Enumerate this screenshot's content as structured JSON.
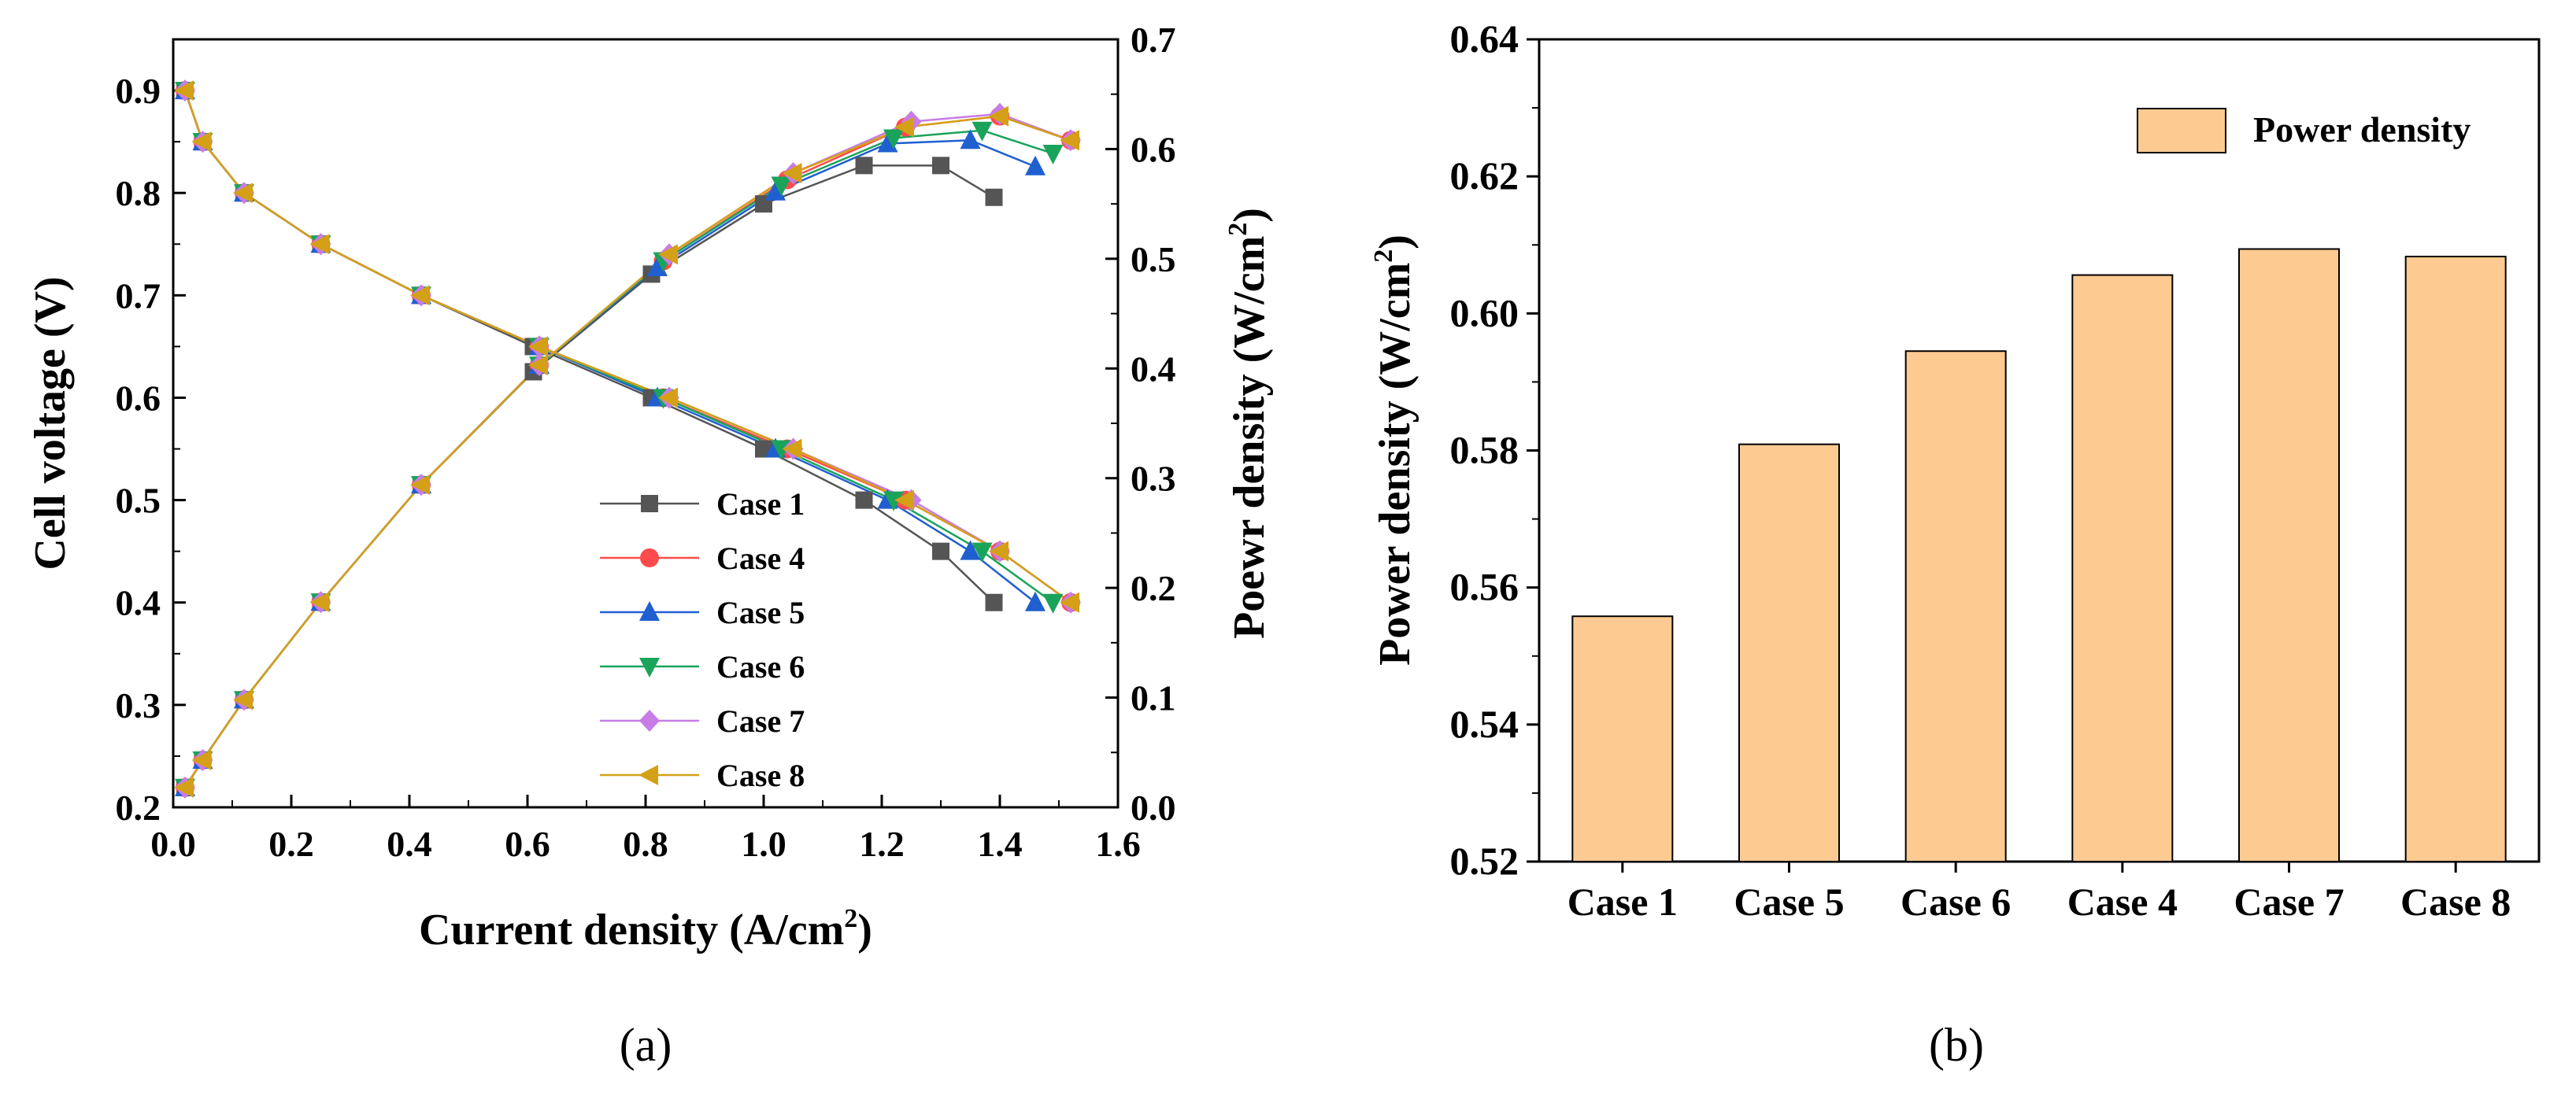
{
  "chart_data": [
    {
      "panel_label": "(a)",
      "type": "line",
      "title": "",
      "xlabel": "Current density (A/cm2)",
      "xlabel_parts": [
        "Current density (A/cm",
        "2",
        ")"
      ],
      "ylabel_left": "Cell voltage (V)",
      "ylabel_right": "Poewr density (W/cm2)",
      "ylabel_right_parts": [
        "Poewr density (W/cm",
        "2",
        ")"
      ],
      "xlim": [
        0.0,
        1.6
      ],
      "ylim_left": [
        0.2,
        0.95
      ],
      "ylim_right": [
        0.0,
        0.7
      ],
      "xticks": [
        "0.0",
        "0.2",
        "0.4",
        "0.6",
        "0.8",
        "1.0",
        "1.2",
        "1.4",
        "1.6"
      ],
      "yticks_left": [
        "0.2",
        "0.3",
        "0.4",
        "0.5",
        "0.6",
        "0.7",
        "0.8",
        "0.9"
      ],
      "yticks_right": [
        "0.0",
        "0.1",
        "0.2",
        "0.3",
        "0.4",
        "0.5",
        "0.6",
        "0.7"
      ],
      "legend_position": "bottom-right",
      "series": [
        {
          "name": "Case 1",
          "color": "#555555",
          "marker": "square",
          "voltage": {
            "x": [
              0.02,
              0.05,
              0.12,
              0.25,
              0.42,
              0.61,
              0.81,
              1.0,
              1.17,
              1.3,
              1.39
            ],
            "y": [
              0.9,
              0.85,
              0.8,
              0.75,
              0.7,
              0.65,
              0.6,
              0.55,
              0.5,
              0.45,
              0.4
            ]
          },
          "power": {
            "x": [
              0.02,
              0.05,
              0.12,
              0.25,
              0.42,
              0.61,
              0.81,
              1.0,
              1.17,
              1.3,
              1.39
            ],
            "y": [
              0.018,
              0.043,
              0.098,
              0.187,
              0.294,
              0.397,
              0.486,
              0.55,
              0.585,
              0.585,
              0.556
            ]
          }
        },
        {
          "name": "Case 4",
          "color": "#ff4b4b",
          "marker": "circle",
          "voltage": {
            "x": [
              0.02,
              0.05,
              0.12,
              0.25,
              0.42,
              0.62,
              0.83,
              1.04,
              1.24,
              1.4,
              1.52
            ],
            "y": [
              0.9,
              0.85,
              0.8,
              0.75,
              0.7,
              0.65,
              0.6,
              0.55,
              0.5,
              0.45,
              0.4
            ]
          },
          "power": {
            "x": [
              0.02,
              0.05,
              0.12,
              0.25,
              0.42,
              0.62,
              0.83,
              1.04,
              1.24,
              1.4,
              1.52
            ],
            "y": [
              0.018,
              0.043,
              0.098,
              0.187,
              0.294,
              0.403,
              0.498,
              0.572,
              0.62,
              0.63,
              0.608
            ]
          }
        },
        {
          "name": "Case 5",
          "color": "#1f5fd0",
          "marker": "triangle-up",
          "voltage": {
            "x": [
              0.02,
              0.05,
              0.12,
              0.25,
              0.42,
              0.62,
              0.82,
              1.02,
              1.21,
              1.35,
              1.46
            ],
            "y": [
              0.9,
              0.85,
              0.8,
              0.75,
              0.7,
              0.65,
              0.6,
              0.55,
              0.5,
              0.45,
              0.4
            ]
          },
          "power": {
            "x": [
              0.02,
              0.05,
              0.12,
              0.25,
              0.42,
              0.62,
              0.82,
              1.02,
              1.21,
              1.35,
              1.46
            ],
            "y": [
              0.018,
              0.043,
              0.098,
              0.187,
              0.294,
              0.403,
              0.492,
              0.561,
              0.605,
              0.608,
              0.584
            ]
          }
        },
        {
          "name": "Case 6",
          "color": "#1aa35a",
          "marker": "triangle-down",
          "voltage": {
            "x": [
              0.02,
              0.05,
              0.12,
              0.25,
              0.42,
              0.62,
              0.83,
              1.03,
              1.22,
              1.37,
              1.49
            ],
            "y": [
              0.9,
              0.85,
              0.8,
              0.75,
              0.7,
              0.65,
              0.6,
              0.55,
              0.5,
              0.45,
              0.4
            ]
          },
          "power": {
            "x": [
              0.02,
              0.05,
              0.12,
              0.25,
              0.42,
              0.62,
              0.83,
              1.03,
              1.22,
              1.37,
              1.49
            ],
            "y": [
              0.018,
              0.043,
              0.098,
              0.187,
              0.294,
              0.403,
              0.498,
              0.567,
              0.61,
              0.617,
              0.596
            ]
          }
        },
        {
          "name": "Case 7",
          "color": "#c77ce6",
          "marker": "diamond",
          "voltage": {
            "x": [
              0.02,
              0.05,
              0.12,
              0.25,
              0.42,
              0.62,
              0.84,
              1.05,
              1.25,
              1.4,
              1.52
            ],
            "y": [
              0.9,
              0.85,
              0.8,
              0.75,
              0.7,
              0.65,
              0.6,
              0.55,
              0.5,
              0.45,
              0.4
            ]
          },
          "power": {
            "x": [
              0.02,
              0.05,
              0.12,
              0.25,
              0.42,
              0.62,
              0.84,
              1.05,
              1.25,
              1.4,
              1.52
            ],
            "y": [
              0.018,
              0.043,
              0.098,
              0.187,
              0.294,
              0.403,
              0.504,
              0.578,
              0.625,
              0.632,
              0.608
            ]
          }
        },
        {
          "name": "Case 8",
          "color": "#d4a017",
          "marker": "triangle-left",
          "voltage": {
            "x": [
              0.02,
              0.05,
              0.12,
              0.25,
              0.42,
              0.62,
              0.84,
              1.05,
              1.24,
              1.4,
              1.52
            ],
            "y": [
              0.9,
              0.85,
              0.8,
              0.75,
              0.7,
              0.65,
              0.6,
              0.55,
              0.5,
              0.45,
              0.4
            ]
          },
          "power": {
            "x": [
              0.02,
              0.05,
              0.12,
              0.25,
              0.42,
              0.62,
              0.84,
              1.05,
              1.24,
              1.4,
              1.52
            ],
            "y": [
              0.018,
              0.043,
              0.098,
              0.187,
              0.294,
              0.403,
              0.504,
              0.578,
              0.62,
              0.63,
              0.608
            ]
          }
        }
      ]
    },
    {
      "panel_label": "(b)",
      "type": "bar",
      "title": "",
      "xlabel": "",
      "ylabel": "Power density (W/cm2)",
      "ylabel_parts": [
        "Power density (W/cm",
        "2",
        ")"
      ],
      "ylim": [
        0.52,
        0.64
      ],
      "yticks": [
        "0.52",
        "0.54",
        "0.56",
        "0.58",
        "0.60",
        "0.62",
        "0.64"
      ],
      "categories": [
        "Case 1",
        "Case 5",
        "Case 6",
        "Case 4",
        "Case 7",
        "Case 8"
      ],
      "values": [
        0.5558,
        0.5809,
        0.5945,
        0.6056,
        0.6094,
        0.6083
      ],
      "series_name": "Power density",
      "bar_color": "#fdca92",
      "legend_position": "top-right"
    }
  ]
}
